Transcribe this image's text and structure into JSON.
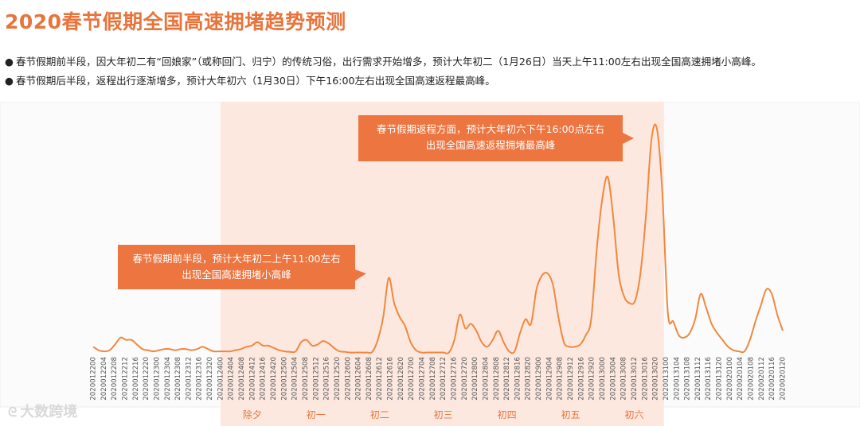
{
  "header": {
    "title": "2020春节假期全国高速拥堵趋势预测",
    "bullets": [
      "春节假期前半段，因大年初二有“回娘家”（或称回门、归宁）的传统习俗，出行需求开始增多，预计大年初二（1月26日）当天上午11:00左右出现全国高速拥堵小高峰。",
      "春节假期后半段，返程出行逐渐增多，预计大年初六（1月30日）下午16:00左右出现全国高速返程最高峰。"
    ]
  },
  "watermark": {
    "logo": "ᘓ",
    "text": "大数跨境"
  },
  "colors": {
    "accent": "#e8743b",
    "line": "#f0883f",
    "band": "#fde8e0",
    "callout": "#ec7540"
  },
  "chart_data": {
    "type": "line",
    "title": "",
    "xlabel": "",
    "ylabel": "",
    "grid": false,
    "x_ticks": [
      "2020012200",
      "2020012204",
      "2020012208",
      "2020012212",
      "2020012216",
      "2020012220",
      "2020012300",
      "2020012304",
      "2020012308",
      "2020012312",
      "2020012316",
      "2020012320",
      "2020012400",
      "2020012404",
      "2020012408",
      "2020012412",
      "2020012416",
      "2020012420",
      "2020012500",
      "2020012504",
      "2020012508",
      "2020012512",
      "2020012516",
      "2020012520",
      "2020012600",
      "2020012604",
      "2020012608",
      "2020012612",
      "2020012616",
      "2020012620",
      "2020012700",
      "2020012704",
      "2020012708",
      "2020012712",
      "2020012716",
      "2020012720",
      "2020012800",
      "2020012804",
      "2020012808",
      "2020012812",
      "2020012816",
      "2020012820",
      "2020012900",
      "2020012904",
      "2020012908",
      "2020012912",
      "2020012916",
      "2020012920",
      "2020013000",
      "2020013004",
      "2020013008",
      "2020013012",
      "2020013016",
      "2020013020",
      "2020013100",
      "2020013104",
      "2020013108",
      "2020013112",
      "2020013116",
      "2020013120",
      "2020020100",
      "2020020104",
      "2020020108",
      "2020020112",
      "2020020116",
      "2020020120"
    ],
    "series": [
      {
        "values": [
          3,
          1.5,
          1,
          1.5,
          4,
          7,
          6,
          6,
          4,
          2,
          1.5,
          1,
          1.5,
          2,
          2,
          1.5,
          2,
          2,
          1.5,
          2,
          3,
          2,
          1,
          1,
          1,
          1,
          1.5,
          2,
          3,
          3.5,
          5,
          3.5,
          3.5,
          2.5,
          1.5,
          1,
          0.8,
          1,
          5,
          6,
          3.5,
          4,
          5.5,
          4.5,
          2.5,
          1,
          0.8,
          0.5,
          0.5,
          0.5,
          0.5,
          0.8,
          6,
          16,
          33,
          22,
          16,
          12,
          5,
          1.5,
          0.5,
          0.5,
          0.5,
          0.5,
          0.5,
          0.5,
          6,
          17,
          11,
          13,
          10,
          5,
          3,
          6,
          10,
          5,
          1,
          1,
          9,
          15,
          13,
          28,
          34,
          35,
          30,
          16,
          5,
          3,
          3,
          4,
          8,
          15,
          45,
          67,
          77,
          60,
          35,
          25,
          22,
          23,
          35,
          60,
          93,
          98,
          70,
          18,
          14,
          8,
          7,
          9,
          15,
          26,
          20,
          13,
          9,
          6,
          3,
          1.5,
          1,
          1,
          6,
          14,
          21,
          28,
          26,
          17,
          10
        ]
      }
    ],
    "y_range": [
      0,
      100
    ],
    "bands": [
      {
        "from_tick": "2020012400",
        "to_tick": "2020013020",
        "label": ""
      }
    ],
    "day_labels": [
      {
        "label": "除夕",
        "tick": "2020012412"
      },
      {
        "label": "初一",
        "tick": "2020012512"
      },
      {
        "label": "初二",
        "tick": "2020012612"
      },
      {
        "label": "初三",
        "tick": "2020012712"
      },
      {
        "label": "初四",
        "tick": "2020012812"
      },
      {
        "label": "初五",
        "tick": "2020012912"
      },
      {
        "label": "初六",
        "tick": "2020013012"
      }
    ],
    "annotations": [
      {
        "lines": [
          "春节假期前半段，预计大年初二上午11:00左右",
          "出现全国高速拥堵小高峰"
        ],
        "target_tick": "2020012608"
      },
      {
        "lines": [
          "春节假期返程方面，预计大年初六下午16:00点左右",
          "出现全国高速返程拥堵最高峰"
        ],
        "target_tick": "2020013016"
      }
    ]
  }
}
